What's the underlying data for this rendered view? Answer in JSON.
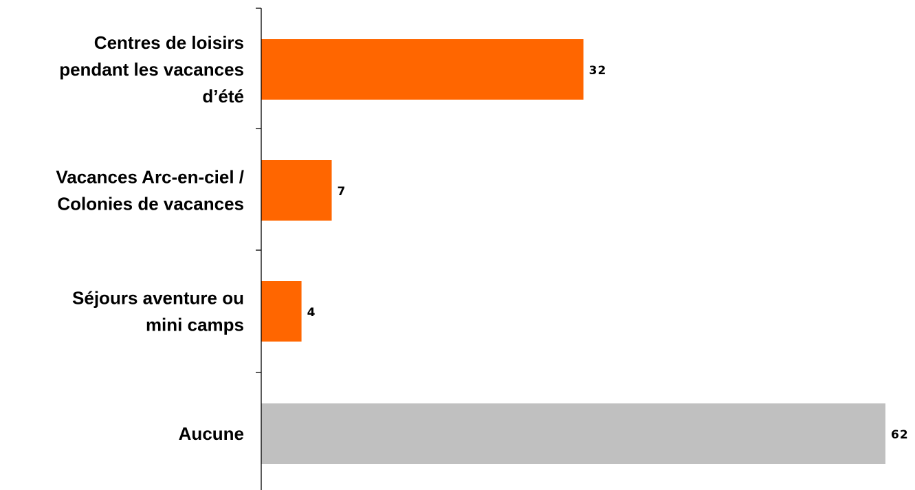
{
  "chart_data": {
    "type": "bar",
    "orientation": "horizontal",
    "categories": [
      [
        "Centres de loisirs",
        "pendant les vacances",
        "d’été"
      ],
      [
        "Vacances Arc-en-ciel /",
        "Colonies de vacances"
      ],
      [
        "Séjours aventure ou",
        "mini camps"
      ],
      [
        "Aucune"
      ]
    ],
    "values": [
      32,
      7,
      4,
      62
    ],
    "value_labels": [
      "32",
      "7",
      "4",
      "62"
    ],
    "bar_colors": [
      "#FF6600",
      "#FF6600",
      "#FF6600",
      "#C0C0C0"
    ],
    "xlim": [
      0,
      62
    ],
    "grid": false,
    "legend": "none",
    "title": "",
    "xlabel": "",
    "ylabel": ""
  }
}
